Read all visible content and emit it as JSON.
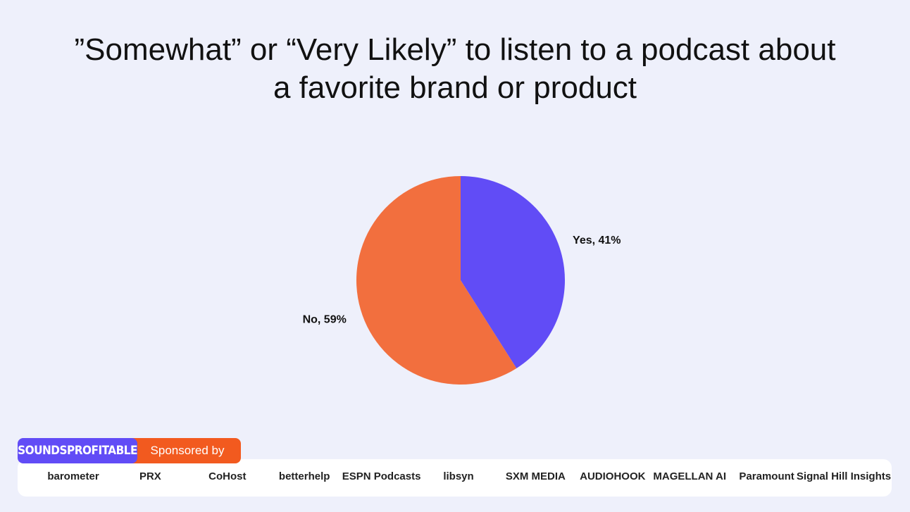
{
  "chart_data": {
    "type": "pie",
    "title": "”Somewhat” or “Very Likely” to listen to a podcast about a favorite brand or product",
    "values": [
      41,
      59
    ],
    "value_labels": [
      "Yes, 41%",
      "No, 59%"
    ],
    "colors": [
      "#614cf6",
      "#f26f3e"
    ]
  },
  "footer": {
    "brand": "SOUNDSPROFITABLE",
    "sponsored": "Sponsored by",
    "sponsors": [
      "barometer",
      "PRX",
      "CoHost",
      "betterhelp",
      "ESPN Podcasts",
      "libsyn",
      "SXM MEDIA",
      "AUDIOHOOK",
      "MAGELLAN AI",
      "Paramount",
      "Signal Hill Insights"
    ]
  }
}
